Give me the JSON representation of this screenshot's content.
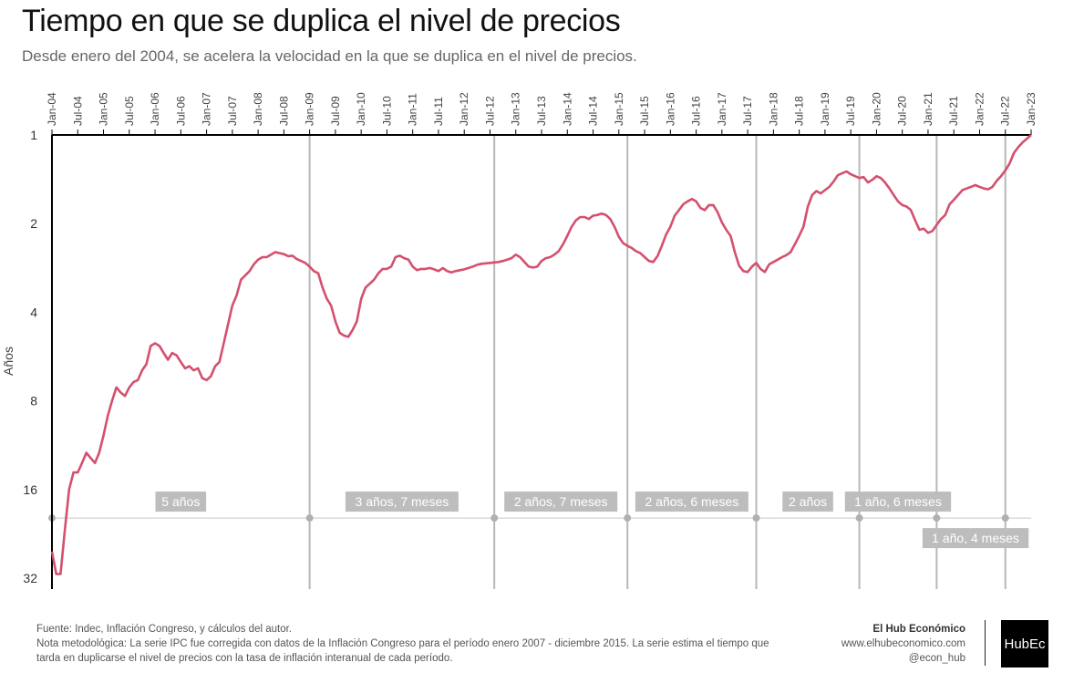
{
  "title": "Tiempo en que se duplica el nivel de precios",
  "subtitle": "Desde enero del 2004, se acelera la velocidad en la que se duplica en el nivel de precios.",
  "footer": {
    "source": "Fuente: Indec, Inflación Congreso, y cálculos del autor.",
    "note1": "Nota metodológica: La serie IPC fue corregida con datos de la Inflación Congreso para el período enero 2007 - diciembre 2015. La serie estima el tiempo que",
    "note2": "tarda en duplicarse el nivel de precios con la tasa de inflación interanual de cada período.",
    "brand": "El Hub Económico",
    "website": "www.elhubeconomico.com",
    "handle": "@econ_hub",
    "logo": "HubEc"
  },
  "chart_data": {
    "type": "line",
    "ylabel": "Años",
    "y_scale": "log2",
    "y_reversed": true,
    "y_ticks": [
      1,
      2,
      4,
      8,
      16,
      32
    ],
    "ylim": [
      1,
      32
    ],
    "x_ticks": [
      "Jan-04",
      "Jul-04",
      "Jan-05",
      "Jul-05",
      "Jan-06",
      "Jul-06",
      "Jan-07",
      "Jul-07",
      "Jan-08",
      "Jul-08",
      "Jan-09",
      "Jul-09",
      "Jan-10",
      "Jul-10",
      "Jan-11",
      "Jul-11",
      "Jan-12",
      "Jul-12",
      "Jan-13",
      "Jul-13",
      "Jan-14",
      "Jul-14",
      "Jan-15",
      "Jul-15",
      "Jan-16",
      "Jul-16",
      "Jan-17",
      "Jul-17",
      "Jan-18",
      "Jul-18",
      "Jan-19",
      "Jul-19",
      "Jan-20",
      "Jul-20",
      "Jan-21",
      "Jul-21",
      "Jan-22",
      "Jul-22",
      "Jan-23"
    ],
    "xlim": [
      "2004-01",
      "2023-01"
    ],
    "line_color": "#d4506e",
    "series": [
      {
        "values": [
          [
            "2004-01",
            26
          ],
          [
            "2004-02",
            31
          ],
          [
            "2004-03",
            31
          ],
          [
            "2004-04",
            22
          ],
          [
            "2004-05",
            16
          ],
          [
            "2004-06",
            14
          ],
          [
            "2004-07",
            14
          ],
          [
            "2004-08",
            13
          ],
          [
            "2004-09",
            12
          ],
          [
            "2004-10",
            12.5
          ],
          [
            "2004-11",
            13
          ],
          [
            "2004-12",
            12
          ],
          [
            "2005-01",
            10.5
          ],
          [
            "2005-02",
            9
          ],
          [
            "2005-03",
            8
          ],
          [
            "2005-04",
            7.2
          ],
          [
            "2005-05",
            7.5
          ],
          [
            "2005-06",
            7.7
          ],
          [
            "2005-07",
            7.2
          ],
          [
            "2005-08",
            6.9
          ],
          [
            "2005-09",
            6.8
          ],
          [
            "2005-10",
            6.3
          ],
          [
            "2005-11",
            6
          ],
          [
            "2005-12",
            5.2
          ],
          [
            "2006-01",
            5.1
          ],
          [
            "2006-02",
            5.2
          ],
          [
            "2006-03",
            5.5
          ],
          [
            "2006-04",
            5.8
          ],
          [
            "2006-05",
            5.5
          ],
          [
            "2006-06",
            5.6
          ],
          [
            "2006-07",
            5.9
          ],
          [
            "2006-08",
            6.2
          ],
          [
            "2006-09",
            6.1
          ],
          [
            "2006-10",
            6.3
          ],
          [
            "2006-11",
            6.2
          ],
          [
            "2006-12",
            6.7
          ],
          [
            "2007-01",
            6.8
          ],
          [
            "2007-02",
            6.6
          ],
          [
            "2007-03",
            6.1
          ],
          [
            "2007-04",
            5.9
          ],
          [
            "2007-05",
            5.1
          ],
          [
            "2007-06",
            4.4
          ],
          [
            "2007-07",
            3.8
          ],
          [
            "2007-08",
            3.5
          ],
          [
            "2007-09",
            3.1
          ],
          [
            "2007-10",
            3
          ],
          [
            "2007-11",
            2.9
          ],
          [
            "2007-12",
            2.75
          ],
          [
            "2008-01",
            2.65
          ],
          [
            "2008-02",
            2.6
          ],
          [
            "2008-03",
            2.6
          ],
          [
            "2008-04",
            2.55
          ],
          [
            "2008-05",
            2.5
          ],
          [
            "2008-06",
            2.52
          ],
          [
            "2008-07",
            2.54
          ],
          [
            "2008-08",
            2.58
          ],
          [
            "2008-09",
            2.57
          ],
          [
            "2008-10",
            2.64
          ],
          [
            "2008-11",
            2.68
          ],
          [
            "2008-12",
            2.72
          ],
          [
            "2009-01",
            2.8
          ],
          [
            "2009-02",
            2.9
          ],
          [
            "2009-03",
            2.95
          ],
          [
            "2009-04",
            3.3
          ],
          [
            "2009-05",
            3.6
          ],
          [
            "2009-06",
            3.8
          ],
          [
            "2009-07",
            4.3
          ],
          [
            "2009-08",
            4.7
          ],
          [
            "2009-09",
            4.8
          ],
          [
            "2009-10",
            4.85
          ],
          [
            "2009-11",
            4.6
          ],
          [
            "2009-12",
            4.3
          ],
          [
            "2010-01",
            3.6
          ],
          [
            "2010-02",
            3.3
          ],
          [
            "2010-03",
            3.2
          ],
          [
            "2010-04",
            3.1
          ],
          [
            "2010-05",
            2.95
          ],
          [
            "2010-06",
            2.85
          ],
          [
            "2010-07",
            2.85
          ],
          [
            "2010-08",
            2.8
          ],
          [
            "2010-09",
            2.6
          ],
          [
            "2010-10",
            2.57
          ],
          [
            "2010-11",
            2.62
          ],
          [
            "2010-12",
            2.65
          ],
          [
            "2011-01",
            2.8
          ],
          [
            "2011-02",
            2.88
          ],
          [
            "2011-03",
            2.85
          ],
          [
            "2011-04",
            2.85
          ],
          [
            "2011-05",
            2.83
          ],
          [
            "2011-06",
            2.86
          ],
          [
            "2011-07",
            2.9
          ],
          [
            "2011-08",
            2.83
          ],
          [
            "2011-09",
            2.9
          ],
          [
            "2011-10",
            2.93
          ],
          [
            "2011-11",
            2.9
          ],
          [
            "2011-12",
            2.88
          ],
          [
            "2012-01",
            2.86
          ],
          [
            "2012-02",
            2.83
          ],
          [
            "2012-03",
            2.8
          ],
          [
            "2012-04",
            2.76
          ],
          [
            "2012-05",
            2.74
          ],
          [
            "2012-06",
            2.73
          ],
          [
            "2012-07",
            2.72
          ],
          [
            "2012-08",
            2.71
          ],
          [
            "2012-09",
            2.7
          ],
          [
            "2012-10",
            2.68
          ],
          [
            "2012-11",
            2.65
          ],
          [
            "2012-12",
            2.62
          ],
          [
            "2013-01",
            2.55
          ],
          [
            "2013-02",
            2.6
          ],
          [
            "2013-03",
            2.7
          ],
          [
            "2013-04",
            2.8
          ],
          [
            "2013-05",
            2.82
          ],
          [
            "2013-06",
            2.8
          ],
          [
            "2013-07",
            2.68
          ],
          [
            "2013-08",
            2.62
          ],
          [
            "2013-09",
            2.6
          ],
          [
            "2013-10",
            2.55
          ],
          [
            "2013-11",
            2.48
          ],
          [
            "2013-12",
            2.35
          ],
          [
            "2014-01",
            2.2
          ],
          [
            "2014-02",
            2.05
          ],
          [
            "2014-03",
            1.95
          ],
          [
            "2014-04",
            1.9
          ],
          [
            "2014-05",
            1.9
          ],
          [
            "2014-06",
            1.93
          ],
          [
            "2014-07",
            1.88
          ],
          [
            "2014-08",
            1.87
          ],
          [
            "2014-09",
            1.85
          ],
          [
            "2014-10",
            1.87
          ],
          [
            "2014-11",
            1.93
          ],
          [
            "2014-12",
            2.05
          ],
          [
            "2015-01",
            2.22
          ],
          [
            "2015-02",
            2.33
          ],
          [
            "2015-03",
            2.38
          ],
          [
            "2015-04",
            2.42
          ],
          [
            "2015-05",
            2.48
          ],
          [
            "2015-06",
            2.52
          ],
          [
            "2015-07",
            2.6
          ],
          [
            "2015-08",
            2.68
          ],
          [
            "2015-09",
            2.7
          ],
          [
            "2015-10",
            2.58
          ],
          [
            "2015-11",
            2.38
          ],
          [
            "2015-12",
            2.18
          ],
          [
            "2016-01",
            2.05
          ],
          [
            "2016-02",
            1.88
          ],
          [
            "2016-03",
            1.8
          ],
          [
            "2016-04",
            1.72
          ],
          [
            "2016-05",
            1.68
          ],
          [
            "2016-06",
            1.65
          ],
          [
            "2016-07",
            1.68
          ],
          [
            "2016-08",
            1.77
          ],
          [
            "2016-09",
            1.8
          ],
          [
            "2016-10",
            1.73
          ],
          [
            "2016-11",
            1.73
          ],
          [
            "2016-12",
            1.83
          ],
          [
            "2017-01",
            1.98
          ],
          [
            "2017-02",
            2.1
          ],
          [
            "2017-03",
            2.2
          ],
          [
            "2017-04",
            2.5
          ],
          [
            "2017-05",
            2.78
          ],
          [
            "2017-06",
            2.9
          ],
          [
            "2017-07",
            2.92
          ],
          [
            "2017-08",
            2.8
          ],
          [
            "2017-09",
            2.72
          ],
          [
            "2017-10",
            2.85
          ],
          [
            "2017-11",
            2.92
          ],
          [
            "2017-12",
            2.75
          ],
          [
            "2018-01",
            2.7
          ],
          [
            "2018-02",
            2.65
          ],
          [
            "2018-03",
            2.6
          ],
          [
            "2018-04",
            2.56
          ],
          [
            "2018-05",
            2.5
          ],
          [
            "2018-06",
            2.35
          ],
          [
            "2018-07",
            2.2
          ],
          [
            "2018-08",
            2.05
          ],
          [
            "2018-09",
            1.75
          ],
          [
            "2018-10",
            1.6
          ],
          [
            "2018-11",
            1.55
          ],
          [
            "2018-12",
            1.58
          ],
          [
            "2019-01",
            1.54
          ],
          [
            "2019-02",
            1.5
          ],
          [
            "2019-03",
            1.44
          ],
          [
            "2019-04",
            1.37
          ],
          [
            "2019-05",
            1.35
          ],
          [
            "2019-06",
            1.33
          ],
          [
            "2019-07",
            1.36
          ],
          [
            "2019-08",
            1.38
          ],
          [
            "2019-09",
            1.4
          ],
          [
            "2019-10",
            1.39
          ],
          [
            "2019-11",
            1.45
          ],
          [
            "2019-12",
            1.42
          ],
          [
            "2020-01",
            1.38
          ],
          [
            "2020-02",
            1.4
          ],
          [
            "2020-03",
            1.45
          ],
          [
            "2020-04",
            1.52
          ],
          [
            "2020-05",
            1.6
          ],
          [
            "2020-06",
            1.68
          ],
          [
            "2020-07",
            1.73
          ],
          [
            "2020-08",
            1.75
          ],
          [
            "2020-09",
            1.8
          ],
          [
            "2020-10",
            1.95
          ],
          [
            "2020-11",
            2.1
          ],
          [
            "2020-12",
            2.08
          ],
          [
            "2021-01",
            2.15
          ],
          [
            "2021-02",
            2.12
          ],
          [
            "2021-03",
            2.02
          ],
          [
            "2021-04",
            1.93
          ],
          [
            "2021-05",
            1.87
          ],
          [
            "2021-06",
            1.72
          ],
          [
            "2021-07",
            1.66
          ],
          [
            "2021-08",
            1.6
          ],
          [
            "2021-09",
            1.54
          ],
          [
            "2021-10",
            1.52
          ],
          [
            "2021-11",
            1.5
          ],
          [
            "2021-12",
            1.48
          ],
          [
            "2022-01",
            1.5
          ],
          [
            "2022-02",
            1.52
          ],
          [
            "2022-03",
            1.53
          ],
          [
            "2022-04",
            1.5
          ],
          [
            "2022-05",
            1.43
          ],
          [
            "2022-06",
            1.38
          ],
          [
            "2022-07",
            1.32
          ],
          [
            "2022-08",
            1.25
          ],
          [
            "2022-09",
            1.15
          ],
          [
            "2022-10",
            1.1
          ],
          [
            "2022-11",
            1.06
          ],
          [
            "2022-12",
            1.03
          ],
          [
            "2023-01",
            1.0
          ]
        ]
      }
    ],
    "regimes": [
      {
        "start": "2004-01",
        "end": "2009-01",
        "label": "5 años"
      },
      {
        "start": "2009-01",
        "end": "2012-08",
        "label": "3 años, 7 meses"
      },
      {
        "start": "2012-08",
        "end": "2015-03",
        "label": "2 años, 7 meses"
      },
      {
        "start": "2015-03",
        "end": "2017-09",
        "label": "2 años, 6 meses"
      },
      {
        "start": "2017-09",
        "end": "2019-09",
        "label": "2 años"
      },
      {
        "start": "2019-09",
        "end": "2021-03",
        "label": "1 año, 6 meses"
      },
      {
        "start": "2021-03",
        "end": "2022-07",
        "label": "1 año, 4 meses"
      }
    ],
    "reference_y": 20
  }
}
